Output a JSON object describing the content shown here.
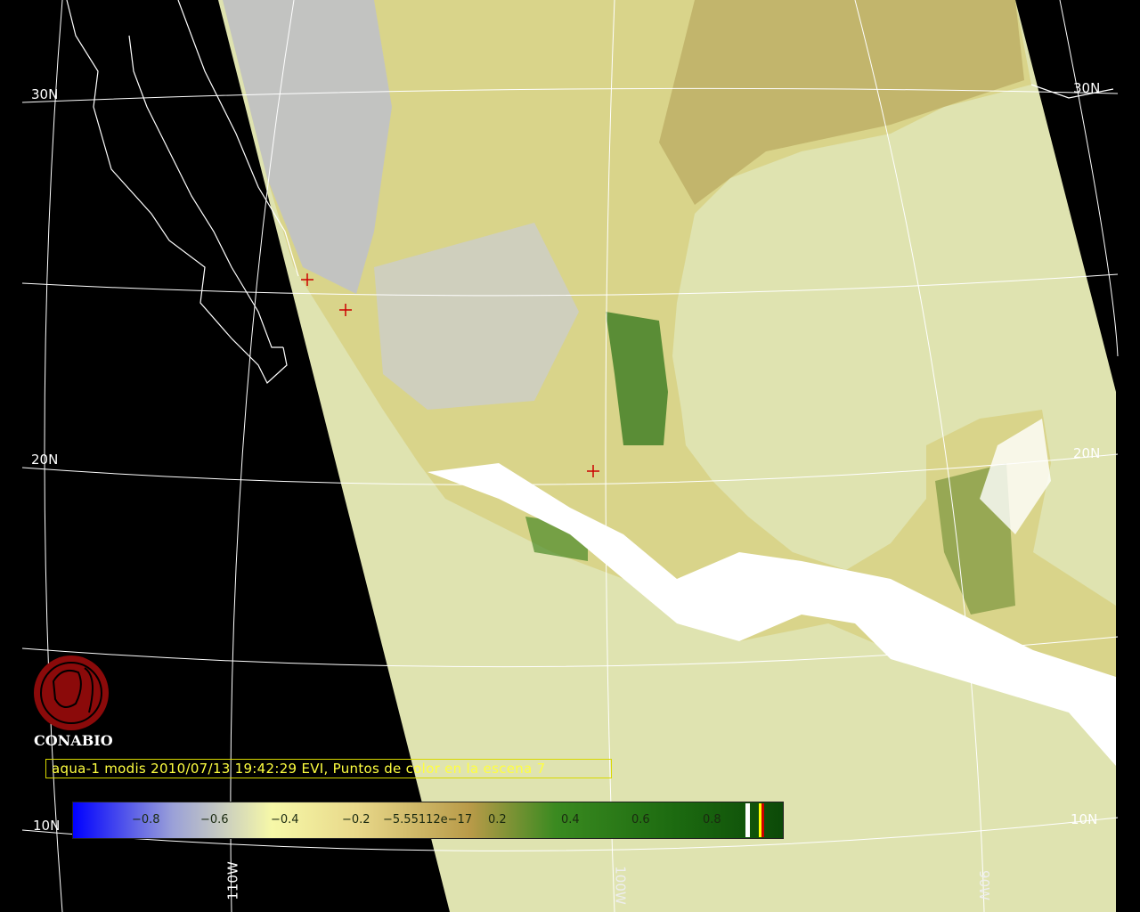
{
  "caption": "aqua-1 modis 2010/07/13 19:42:29 EVI, Puntos de color en la escena 7",
  "logo": {
    "text": "CONABIO",
    "color": "#8b0a0a"
  },
  "graticule": {
    "lat_labels": {
      "left_30": "30N",
      "right_30": "30N",
      "left_20": "20N",
      "right_20": "20N",
      "left_10": "10N",
      "right_10": "10N"
    },
    "lon_labels": {
      "w110": "110W",
      "w100": "100W",
      "w90": "90W"
    }
  },
  "colorbar": {
    "ticks": [
      "−0.8",
      "−0.6",
      "−0.4",
      "−0.2",
      "−5.55112e−17",
      "0.2",
      "0.4",
      "0.6",
      "0.8"
    ],
    "range": [
      -1,
      1
    ],
    "colors": {
      "low": "#0000ff",
      "mid": "#f6f8a8",
      "high": "#0c4a08"
    }
  },
  "colors": {
    "background": "#000000",
    "swath": "#dfe3b0",
    "coast": "#ffffff",
    "marker": "#cc0000"
  }
}
